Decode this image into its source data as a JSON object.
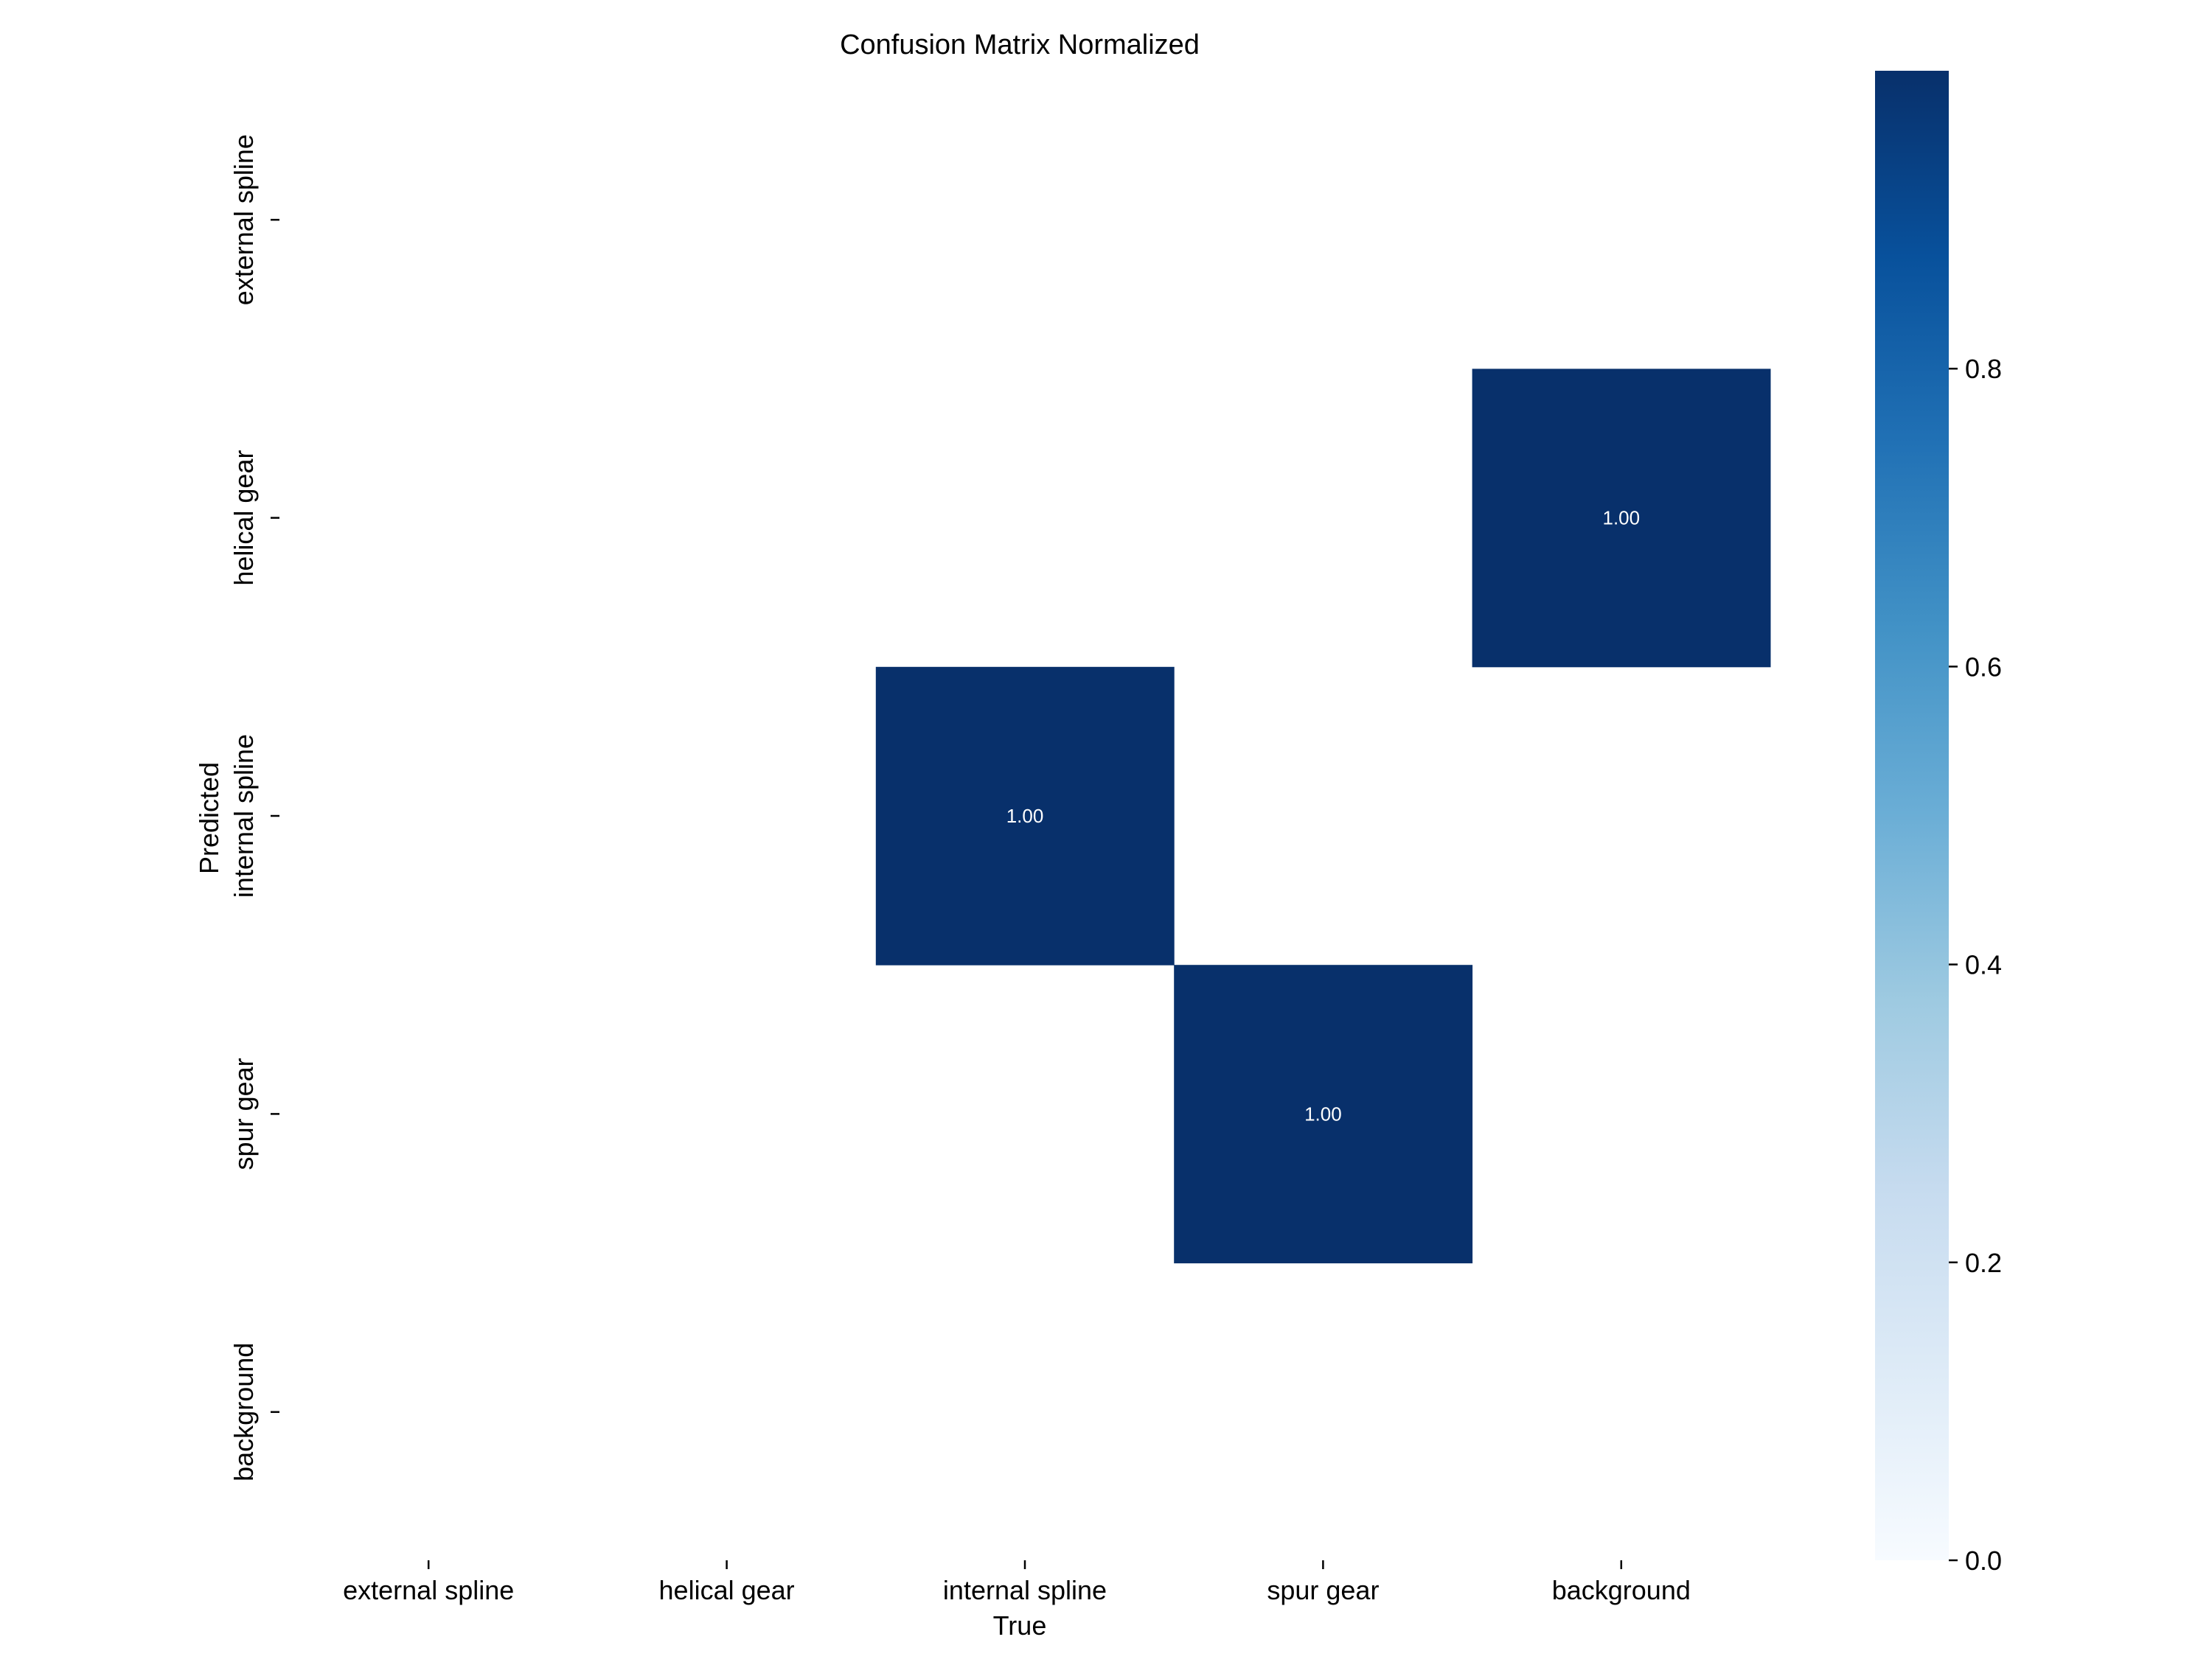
{
  "chart_data": {
    "type": "heatmap",
    "title": "Confusion Matrix Normalized",
    "xlabel": "True",
    "ylabel": "Predicted",
    "x_categories": [
      "external spline",
      "helical gear",
      "internal spline",
      "spur gear",
      "background"
    ],
    "y_categories": [
      "external spline",
      "helical gear",
      "internal spline",
      "spur gear",
      "background"
    ],
    "values": [
      [
        null,
        null,
        null,
        null,
        null
      ],
      [
        null,
        null,
        null,
        null,
        1.0
      ],
      [
        null,
        null,
        1.0,
        null,
        null
      ],
      [
        null,
        null,
        null,
        1.0,
        null
      ],
      [
        null,
        null,
        null,
        null,
        null
      ]
    ],
    "cell_labels": [
      [
        "",
        "",
        "",
        "",
        ""
      ],
      [
        "",
        "",
        "",
        "",
        "1.00"
      ],
      [
        "",
        "",
        "1.00",
        "",
        ""
      ],
      [
        "",
        "",
        "",
        "1.00",
        ""
      ],
      [
        "",
        "",
        "",
        "",
        ""
      ]
    ],
    "colormap": "Blues",
    "colorbar": {
      "range": [
        0.0,
        1.0
      ],
      "ticks": [
        0.0,
        0.2,
        0.4,
        0.6,
        0.8
      ],
      "tick_labels": [
        "0.0",
        "0.2",
        "0.4",
        "0.6",
        "0.8"
      ]
    },
    "colors": {
      "low": "#f7fbff",
      "high": "#08306b",
      "cell_text": "#ffffff"
    }
  }
}
